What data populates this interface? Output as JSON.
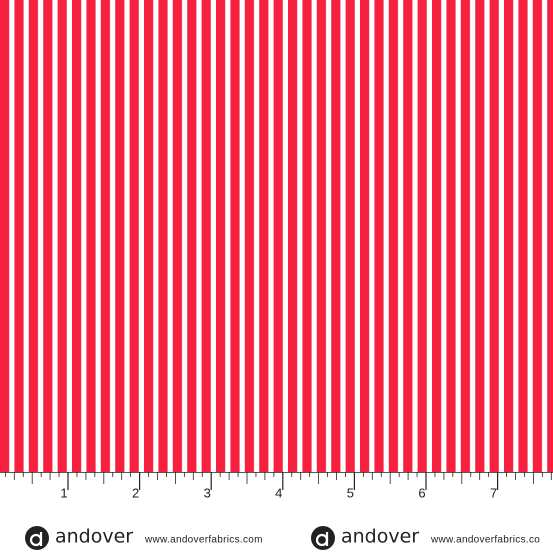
{
  "ruler": {
    "labels": [
      "1",
      "2",
      "3",
      "4",
      "5",
      "6",
      "7"
    ]
  },
  "branding": [
    {
      "name": "andover",
      "url": "www.andoverfabrics.com"
    },
    {
      "name": "andover",
      "url": "www.andoverfabrics.co"
    }
  ]
}
